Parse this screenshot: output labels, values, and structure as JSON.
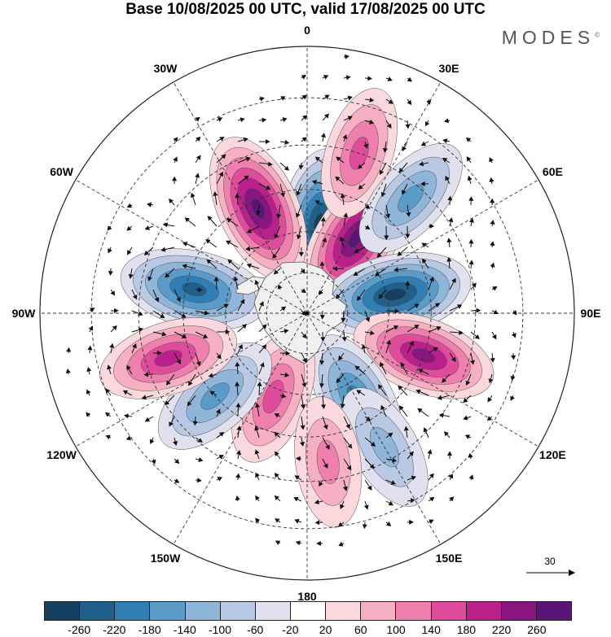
{
  "title": "Base 10/08/2025 00 UTC, valid 17/08/2025 00 UTC",
  "brand": "MODES",
  "brand_mark": "©",
  "longitude_labels": [
    {
      "text": "0",
      "lon": 0
    },
    {
      "text": "30E",
      "lon": 30
    },
    {
      "text": "60E",
      "lon": 60
    },
    {
      "text": "90E",
      "lon": 90
    },
    {
      "text": "120E",
      "lon": 120
    },
    {
      "text": "150E",
      "lon": 150
    },
    {
      "text": "180",
      "lon": 180
    },
    {
      "text": "150W",
      "lon": -150
    },
    {
      "text": "120W",
      "lon": -120
    },
    {
      "text": "90W",
      "lon": -90
    },
    {
      "text": "60W",
      "lon": -60
    },
    {
      "text": "30W",
      "lon": -30
    }
  ],
  "reference_vector": {
    "value": "30"
  },
  "colorbar": {
    "colors": [
      "#173f5f",
      "#1f5f8b",
      "#2f7fb4",
      "#5b9bc9",
      "#8fb5d9",
      "#b9c9e3",
      "#e0e0ee",
      "#ffffff",
      "#fbd8dc",
      "#f6b0c2",
      "#ef7fac",
      "#de4c9b",
      "#bb1f8c",
      "#8a1580",
      "#5a1577"
    ],
    "ticks": [
      "-260",
      "-220",
      "-180",
      "-140",
      "-100",
      "-60",
      "-20",
      "20",
      "60",
      "100",
      "140",
      "180",
      "220",
      "260"
    ]
  },
  "anomaly_centers": [
    {
      "lon": 8,
      "colat": 22,
      "value": -240
    },
    {
      "lon": -25,
      "colat": 28,
      "value": 250
    },
    {
      "lon": 33,
      "colat": 22,
      "value": 250
    },
    {
      "lon": 78,
      "colat": 22,
      "value": -250
    },
    {
      "lon": -78,
      "colat": 28,
      "value": -220
    },
    {
      "lon": 110,
      "colat": 30,
      "value": 200
    },
    {
      "lon": 150,
      "colat": 24,
      "value": -160
    },
    {
      "lon": -158,
      "colat": 22,
      "value": 150
    },
    {
      "lon": -132,
      "colat": 30,
      "value": -150
    },
    {
      "lon": -108,
      "colat": 35,
      "value": 170
    },
    {
      "lon": 18,
      "colat": 40,
      "value": 120
    },
    {
      "lon": 42,
      "colat": 37,
      "value": -120
    },
    {
      "lon": 150,
      "colat": 37,
      "value": -100
    },
    {
      "lon": 172,
      "colat": 36,
      "value": 100
    }
  ]
}
